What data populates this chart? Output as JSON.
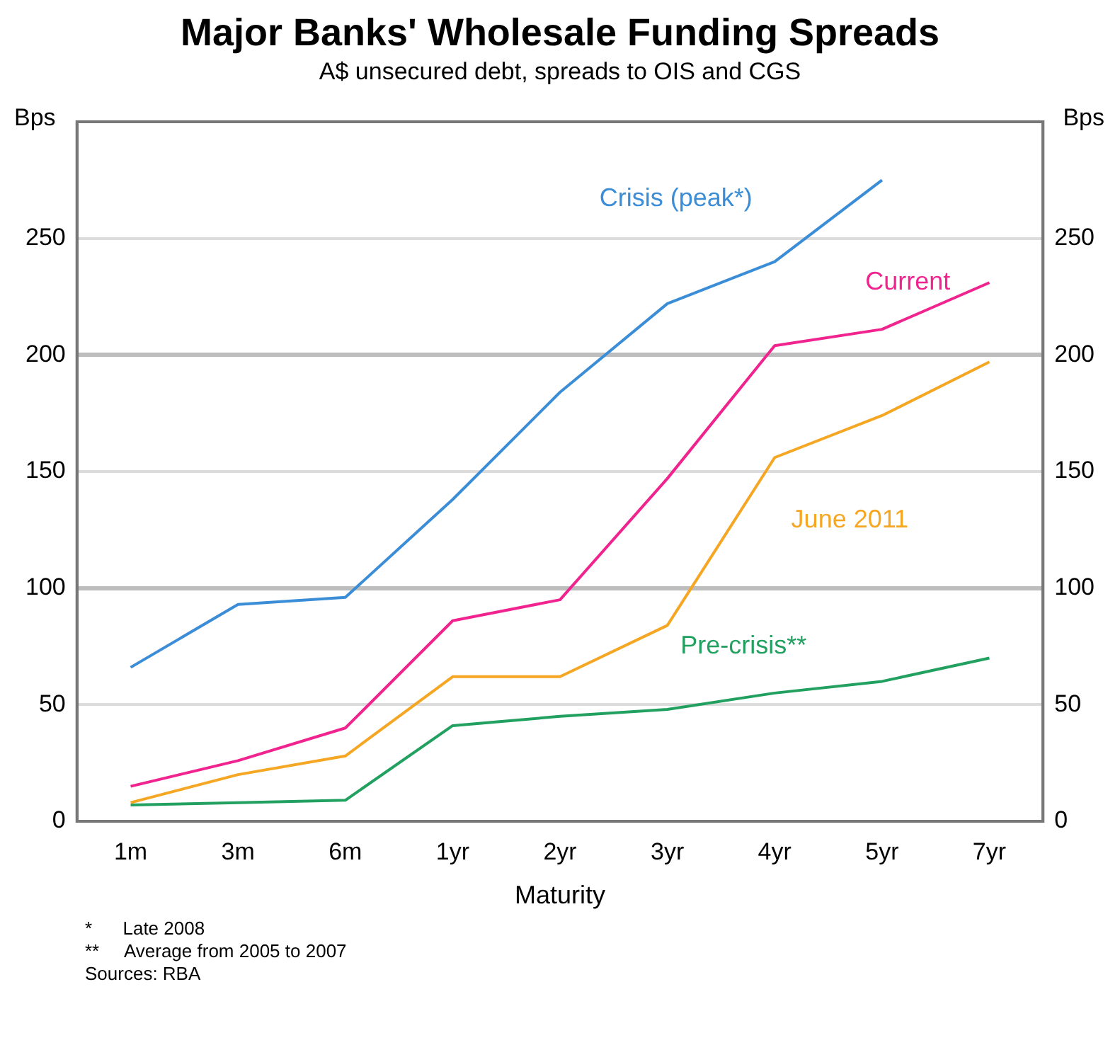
{
  "chart_data": {
    "type": "line",
    "title": "Major Banks' Wholesale Funding Spreads",
    "subtitle": "A$ unsecured debt, spreads to OIS and CGS",
    "xlabel": "Maturity",
    "ylabel": "Bps",
    "y2label": "Bps",
    "categories": [
      "1m",
      "3m",
      "6m",
      "1yr",
      "2yr",
      "3yr",
      "4yr",
      "5yr",
      "7yr"
    ],
    "series": [
      {
        "name": "Crisis (peak*)",
        "color": "#3a8dd6",
        "values": [
          66,
          93,
          96,
          138,
          184,
          222,
          240,
          275,
          null
        ]
      },
      {
        "name": "Current",
        "color": "#f0238f",
        "values": [
          15,
          26,
          40,
          86,
          95,
          147,
          204,
          211,
          231
        ]
      },
      {
        "name": "June 2011",
        "color": "#f5a623",
        "values": [
          8,
          20,
          28,
          62,
          62,
          84,
          156,
          174,
          197
        ]
      },
      {
        "name": "Pre-crisis**",
        "color": "#22a060",
        "values": [
          7,
          8,
          9,
          41,
          45,
          48,
          55,
          60,
          70
        ]
      }
    ],
    "ylim": [
      0,
      300
    ],
    "yticks": [
      0,
      50,
      100,
      150,
      200,
      250
    ],
    "y2lim": [
      0,
      300
    ],
    "y2ticks": [
      0,
      50,
      100,
      150,
      200,
      250
    ],
    "grid": "y",
    "legend": false,
    "marker": "none",
    "line_style": "solid",
    "annotations": [
      "*      Late 2008",
      "**     Average from 2005 to 2007",
      "Sources: RBA"
    ]
  }
}
